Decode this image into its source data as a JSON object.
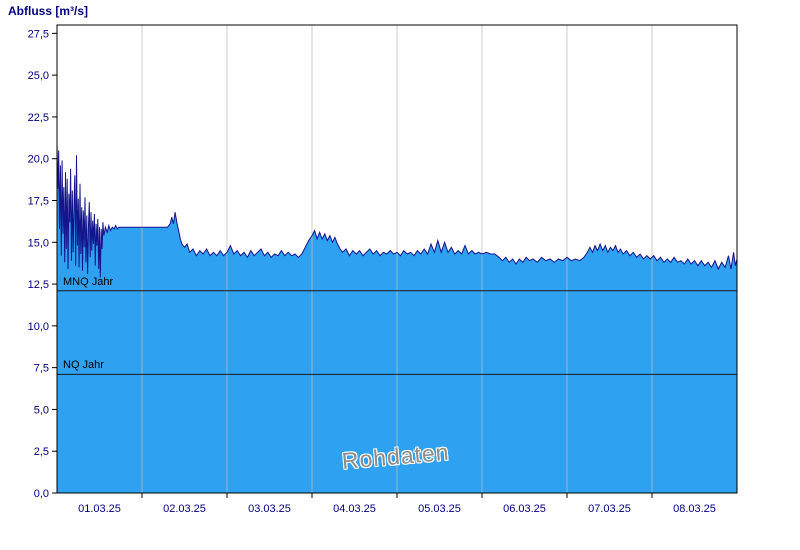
{
  "title": "Abfluss [m³/s]",
  "watermark": "Rohdaten",
  "colors": {
    "fill": "#2ea1f0",
    "line": "#14148c",
    "axis_label": "#000080",
    "reference_line": "#1a1a1a",
    "grid": "#bdbdbd",
    "border": "#000000"
  },
  "chart_data": {
    "type": "area",
    "title": "Abfluss [m³/s]",
    "xlabel": "",
    "ylabel": "Abfluss [m³/s]",
    "xlim": [
      0,
      8
    ],
    "ylim": [
      0,
      28
    ],
    "grid": "vertical-day-boundaries",
    "legend_position": "none",
    "x_gridlines": [
      1,
      2,
      3,
      4,
      5,
      6,
      7
    ],
    "x_tick_positions": [
      0.5,
      1.5,
      2.5,
      3.5,
      4.5,
      5.5,
      6.5,
      7.5
    ],
    "x_tick_labels": [
      "01.03.25",
      "02.03.25",
      "03.03.25",
      "04.03.25",
      "05.03.25",
      "06.03.25",
      "07.03.25",
      "08.03.25"
    ],
    "y_ticks": [
      0,
      2.5,
      5,
      7.5,
      10,
      12.5,
      15,
      17.5,
      20,
      22.5,
      25,
      27.5
    ],
    "y_tick_labels": [
      "0,0",
      "2,5",
      "5,0",
      "7,5",
      "10,0",
      "12,5",
      "15,0",
      "17,5",
      "20,0",
      "22,5",
      "25,0",
      "27,5"
    ],
    "reference_lines": [
      {
        "label": "MNQ Jahr",
        "value": 12.1
      },
      {
        "label": "NQ Jahr",
        "value": 7.1
      }
    ],
    "series": [
      {
        "name": "Abfluss Rohdaten",
        "points": [
          [
            0.0,
            20.9
          ],
          [
            0.01,
            18.2
          ],
          [
            0.02,
            20.5
          ],
          [
            0.03,
            15.8
          ],
          [
            0.04,
            19.6
          ],
          [
            0.05,
            14.2
          ],
          [
            0.06,
            19.9
          ],
          [
            0.07,
            15.5
          ],
          [
            0.08,
            18.3
          ],
          [
            0.09,
            13.8
          ],
          [
            0.1,
            19.2
          ],
          [
            0.11,
            14.6
          ],
          [
            0.12,
            18.8
          ],
          [
            0.13,
            13.4
          ],
          [
            0.14,
            17.9
          ],
          [
            0.15,
            16.2
          ],
          [
            0.16,
            19.4
          ],
          [
            0.17,
            13.9
          ],
          [
            0.18,
            18.1
          ],
          [
            0.19,
            14.4
          ],
          [
            0.2,
            17.3
          ],
          [
            0.21,
            19.0
          ],
          [
            0.22,
            13.6
          ],
          [
            0.23,
            20.2
          ],
          [
            0.24,
            14.8
          ],
          [
            0.25,
            17.6
          ],
          [
            0.26,
            13.5
          ],
          [
            0.27,
            18.5
          ],
          [
            0.28,
            14.3
          ],
          [
            0.29,
            17.1
          ],
          [
            0.3,
            13.3
          ],
          [
            0.31,
            16.9
          ],
          [
            0.32,
            14.7
          ],
          [
            0.33,
            17.7
          ],
          [
            0.34,
            13.8
          ],
          [
            0.35,
            16.6
          ],
          [
            0.36,
            13.1
          ],
          [
            0.37,
            16.0
          ],
          [
            0.38,
            17.4
          ],
          [
            0.39,
            14.1
          ],
          [
            0.4,
            16.8
          ],
          [
            0.41,
            14.5
          ],
          [
            0.42,
            16.3
          ],
          [
            0.43,
            14.9
          ],
          [
            0.44,
            16.7
          ],
          [
            0.45,
            13.6
          ],
          [
            0.46,
            16.1
          ],
          [
            0.47,
            14.8
          ],
          [
            0.48,
            16.4
          ],
          [
            0.49,
            13.4
          ],
          [
            0.5,
            15.9
          ],
          [
            0.51,
            12.9
          ],
          [
            0.52,
            15.8
          ],
          [
            0.53,
            14.6
          ],
          [
            0.54,
            16.2
          ],
          [
            0.55,
            15.4
          ],
          [
            0.57,
            15.9
          ],
          [
            0.59,
            15.6
          ],
          [
            0.61,
            16.0
          ],
          [
            0.63,
            15.7
          ],
          [
            0.65,
            15.9
          ],
          [
            0.67,
            15.8
          ],
          [
            0.69,
            16.0
          ],
          [
            0.71,
            15.8
          ],
          [
            0.73,
            15.9
          ],
          [
            0.75,
            15.9
          ],
          [
            0.8,
            15.9
          ],
          [
            0.85,
            15.9
          ],
          [
            0.9,
            15.9
          ],
          [
            0.95,
            15.9
          ],
          [
            1.0,
            15.9
          ],
          [
            1.05,
            15.9
          ],
          [
            1.1,
            15.9
          ],
          [
            1.15,
            15.9
          ],
          [
            1.2,
            15.9
          ],
          [
            1.25,
            15.9
          ],
          [
            1.3,
            15.9
          ],
          [
            1.33,
            16.1
          ],
          [
            1.35,
            16.5
          ],
          [
            1.37,
            16.1
          ],
          [
            1.39,
            16.8
          ],
          [
            1.41,
            16.2
          ],
          [
            1.43,
            15.7
          ],
          [
            1.45,
            15.2
          ],
          [
            1.47,
            14.9
          ],
          [
            1.5,
            14.7
          ],
          [
            1.53,
            14.9
          ],
          [
            1.56,
            14.4
          ],
          [
            1.6,
            14.6
          ],
          [
            1.64,
            14.2
          ],
          [
            1.68,
            14.5
          ],
          [
            1.72,
            14.3
          ],
          [
            1.76,
            14.6
          ],
          [
            1.8,
            14.2
          ],
          [
            1.84,
            14.4
          ],
          [
            1.88,
            14.2
          ],
          [
            1.92,
            14.5
          ],
          [
            1.96,
            14.2
          ],
          [
            2.0,
            14.4
          ],
          [
            2.04,
            14.8
          ],
          [
            2.08,
            14.3
          ],
          [
            2.12,
            14.5
          ],
          [
            2.16,
            14.2
          ],
          [
            2.2,
            14.4
          ],
          [
            2.24,
            14.1
          ],
          [
            2.28,
            14.5
          ],
          [
            2.32,
            14.2
          ],
          [
            2.36,
            14.4
          ],
          [
            2.4,
            14.6
          ],
          [
            2.44,
            14.2
          ],
          [
            2.48,
            14.4
          ],
          [
            2.52,
            14.1
          ],
          [
            2.56,
            14.3
          ],
          [
            2.6,
            14.2
          ],
          [
            2.64,
            14.5
          ],
          [
            2.68,
            14.2
          ],
          [
            2.72,
            14.4
          ],
          [
            2.76,
            14.2
          ],
          [
            2.8,
            14.3
          ],
          [
            2.84,
            14.1
          ],
          [
            2.88,
            14.3
          ],
          [
            2.92,
            14.7
          ],
          [
            2.96,
            15.1
          ],
          [
            3.0,
            15.4
          ],
          [
            3.03,
            15.7
          ],
          [
            3.06,
            15.2
          ],
          [
            3.09,
            15.6
          ],
          [
            3.12,
            15.2
          ],
          [
            3.15,
            15.5
          ],
          [
            3.18,
            15.1
          ],
          [
            3.21,
            15.4
          ],
          [
            3.24,
            15.0
          ],
          [
            3.27,
            15.3
          ],
          [
            3.3,
            14.9
          ],
          [
            3.33,
            14.6
          ],
          [
            3.36,
            14.4
          ],
          [
            3.4,
            14.6
          ],
          [
            3.44,
            14.2
          ],
          [
            3.48,
            14.5
          ],
          [
            3.52,
            14.3
          ],
          [
            3.56,
            14.5
          ],
          [
            3.6,
            14.2
          ],
          [
            3.64,
            14.4
          ],
          [
            3.68,
            14.6
          ],
          [
            3.72,
            14.3
          ],
          [
            3.76,
            14.5
          ],
          [
            3.8,
            14.2
          ],
          [
            3.84,
            14.4
          ],
          [
            3.88,
            14.3
          ],
          [
            3.92,
            14.5
          ],
          [
            3.96,
            14.3
          ],
          [
            4.0,
            14.4
          ],
          [
            4.04,
            14.2
          ],
          [
            4.08,
            14.5
          ],
          [
            4.12,
            14.3
          ],
          [
            4.16,
            14.4
          ],
          [
            4.2,
            14.2
          ],
          [
            4.24,
            14.5
          ],
          [
            4.28,
            14.3
          ],
          [
            4.32,
            14.6
          ],
          [
            4.36,
            14.3
          ],
          [
            4.4,
            14.9
          ],
          [
            4.44,
            14.4
          ],
          [
            4.48,
            15.1
          ],
          [
            4.52,
            14.4
          ],
          [
            4.56,
            15.0
          ],
          [
            4.6,
            14.4
          ],
          [
            4.64,
            14.7
          ],
          [
            4.68,
            14.3
          ],
          [
            4.72,
            14.5
          ],
          [
            4.76,
            14.3
          ],
          [
            4.8,
            14.8
          ],
          [
            4.84,
            14.3
          ],
          [
            4.88,
            14.5
          ],
          [
            4.92,
            14.3
          ],
          [
            4.96,
            14.4
          ],
          [
            5.0,
            14.3
          ],
          [
            5.05,
            14.4
          ],
          [
            5.1,
            14.3
          ],
          [
            5.15,
            14.3
          ],
          [
            5.2,
            14.1
          ],
          [
            5.24,
            13.9
          ],
          [
            5.28,
            14.1
          ],
          [
            5.32,
            13.8
          ],
          [
            5.36,
            14.0
          ],
          [
            5.4,
            13.7
          ],
          [
            5.44,
            14.0
          ],
          [
            5.48,
            13.8
          ],
          [
            5.52,
            14.1
          ],
          [
            5.56,
            13.9
          ],
          [
            5.6,
            14.0
          ],
          [
            5.65,
            13.8
          ],
          [
            5.7,
            14.1
          ],
          [
            5.75,
            13.9
          ],
          [
            5.8,
            14.0
          ],
          [
            5.85,
            13.8
          ],
          [
            5.9,
            14.0
          ],
          [
            5.95,
            13.9
          ],
          [
            6.0,
            14.1
          ],
          [
            6.05,
            13.9
          ],
          [
            6.1,
            14.0
          ],
          [
            6.15,
            13.9
          ],
          [
            6.2,
            14.1
          ],
          [
            6.24,
            14.4
          ],
          [
            6.27,
            14.7
          ],
          [
            6.3,
            14.4
          ],
          [
            6.33,
            14.8
          ],
          [
            6.36,
            14.5
          ],
          [
            6.39,
            14.9
          ],
          [
            6.42,
            14.5
          ],
          [
            6.45,
            14.8
          ],
          [
            6.48,
            14.4
          ],
          [
            6.51,
            14.7
          ],
          [
            6.54,
            14.5
          ],
          [
            6.57,
            14.8
          ],
          [
            6.6,
            14.4
          ],
          [
            6.63,
            14.6
          ],
          [
            6.66,
            14.3
          ],
          [
            6.7,
            14.5
          ],
          [
            6.74,
            14.2
          ],
          [
            6.78,
            14.4
          ],
          [
            6.82,
            14.1
          ],
          [
            6.86,
            14.3
          ],
          [
            6.9,
            14.0
          ],
          [
            6.94,
            14.2
          ],
          [
            6.98,
            14.0
          ],
          [
            7.02,
            14.2
          ],
          [
            7.06,
            13.9
          ],
          [
            7.1,
            14.1
          ],
          [
            7.14,
            13.8
          ],
          [
            7.18,
            14.0
          ],
          [
            7.22,
            13.8
          ],
          [
            7.26,
            14.1
          ],
          [
            7.3,
            13.8
          ],
          [
            7.34,
            13.9
          ],
          [
            7.38,
            13.7
          ],
          [
            7.42,
            14.0
          ],
          [
            7.46,
            13.7
          ],
          [
            7.5,
            13.9
          ],
          [
            7.54,
            13.6
          ],
          [
            7.58,
            13.9
          ],
          [
            7.62,
            13.6
          ],
          [
            7.66,
            13.8
          ],
          [
            7.7,
            13.5
          ],
          [
            7.74,
            13.9
          ],
          [
            7.78,
            13.4
          ],
          [
            7.82,
            13.8
          ],
          [
            7.86,
            13.5
          ],
          [
            7.9,
            14.2
          ],
          [
            7.93,
            13.4
          ],
          [
            7.96,
            14.4
          ],
          [
            7.98,
            13.6
          ],
          [
            8.0,
            14.0
          ]
        ]
      }
    ]
  }
}
